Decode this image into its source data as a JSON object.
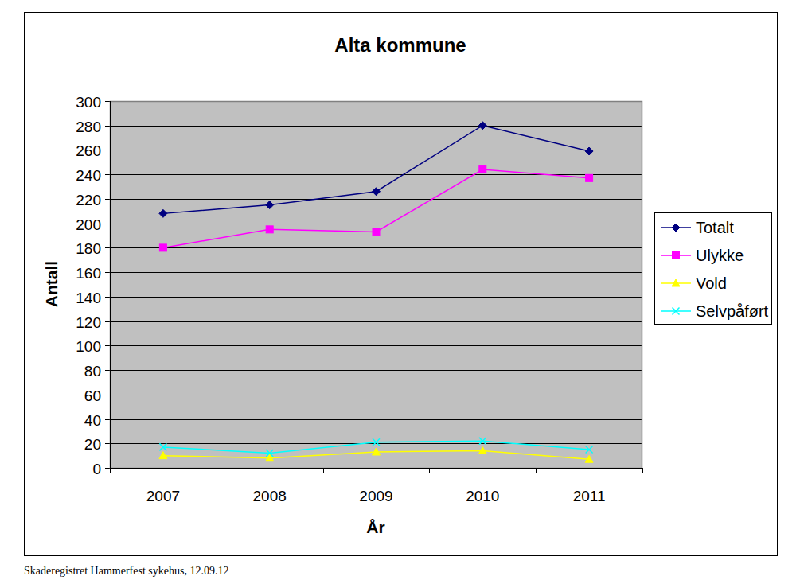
{
  "chart_data": {
    "type": "line",
    "title": "Alta kommune",
    "x_label": "År",
    "y_label": "Antall",
    "categories": [
      "2007",
      "2008",
      "2009",
      "2010",
      "2011"
    ],
    "series": [
      {
        "name": "Totalt",
        "color": "#000080",
        "marker": "diamond",
        "values": [
          208,
          215,
          226,
          280,
          259
        ]
      },
      {
        "name": "Ulykke",
        "color": "#ff00ff",
        "marker": "square",
        "values": [
          180,
          195,
          193,
          244,
          237
        ]
      },
      {
        "name": "Vold",
        "color": "#ffff00",
        "marker": "triangle",
        "values": [
          10,
          8,
          13,
          14,
          7
        ]
      },
      {
        "name": "Selvpåført",
        "color": "#00ffff",
        "marker": "cross",
        "values": [
          17,
          12,
          21,
          22,
          15
        ]
      }
    ],
    "ylim": [
      0,
      300
    ],
    "yticks": [
      0,
      20,
      40,
      60,
      80,
      100,
      120,
      140,
      160,
      180,
      200,
      220,
      240,
      260,
      280,
      300
    ],
    "grid": true,
    "legend": "right",
    "annotations": [
      "Skaderegistret Hammerfest sykehus, 12.09.12"
    ]
  }
}
